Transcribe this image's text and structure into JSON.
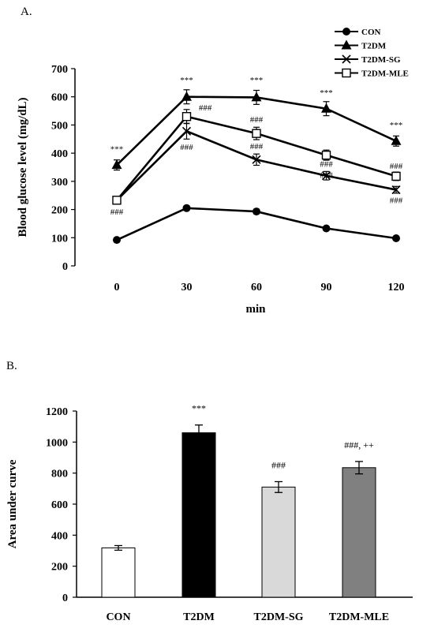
{
  "chart_data": [
    {
      "panel": "A.",
      "type": "line",
      "xlabel": "min",
      "ylabel": "Blood glucose level (mg/dL)",
      "x": [
        0,
        30,
        60,
        90,
        120
      ],
      "xticks": [
        "0",
        "30",
        "60",
        "90",
        "120"
      ],
      "ylim": [
        0,
        700
      ],
      "yticks": [
        "0",
        "100",
        "200",
        "300",
        "400",
        "500",
        "600",
        "700"
      ],
      "grid": false,
      "legend_position": "top-right",
      "series": [
        {
          "name": "CON",
          "marker": "circle",
          "values": [
            92,
            205,
            193,
            133,
            98
          ],
          "errors": [
            5,
            8,
            8,
            6,
            5
          ]
        },
        {
          "name": "T2DM",
          "marker": "triangle",
          "values": [
            358,
            600,
            598,
            558,
            443
          ],
          "errors": [
            18,
            25,
            25,
            25,
            18
          ]
        },
        {
          "name": "T2DM-SG",
          "marker": "x",
          "values": [
            233,
            478,
            377,
            320,
            270
          ],
          "errors": [
            10,
            28,
            20,
            15,
            12
          ]
        },
        {
          "name": "T2DM-MLE",
          "marker": "square",
          "values": [
            233,
            530,
            470,
            393,
            318
          ],
          "errors": [
            10,
            25,
            22,
            18,
            15
          ]
        }
      ],
      "annotations": [
        {
          "x": 0,
          "y": 405,
          "text": "***"
        },
        {
          "x": 30,
          "y": 650,
          "text": "***"
        },
        {
          "x": 60,
          "y": 650,
          "text": "***"
        },
        {
          "x": 90,
          "y": 605,
          "text": "***"
        },
        {
          "x": 120,
          "y": 490,
          "text": "***"
        },
        {
          "x": 0,
          "y": 182,
          "text": "###"
        },
        {
          "x": 38,
          "y": 552,
          "text": "###"
        },
        {
          "x": 30,
          "y": 412,
          "text": "###"
        },
        {
          "x": 60,
          "y": 510,
          "text": "###"
        },
        {
          "x": 60,
          "y": 415,
          "text": "###"
        },
        {
          "x": 90,
          "y": 352,
          "text": "###"
        },
        {
          "x": 90,
          "y": 312,
          "text": "###"
        },
        {
          "x": 120,
          "y": 345,
          "text": "###"
        },
        {
          "x": 120,
          "y": 223,
          "text": "###"
        }
      ]
    },
    {
      "panel": "B.",
      "type": "bar",
      "ylabel": "Area under curve",
      "categories": [
        "CON",
        "T2DM",
        "T2DM-SG",
        "T2DM-MLE"
      ],
      "values": [
        318,
        1060,
        710,
        835
      ],
      "errors": [
        15,
        50,
        35,
        40
      ],
      "colors": [
        "#ffffff",
        "#000000",
        "#d9d9d9",
        "#808080"
      ],
      "ylim": [
        0,
        1200
      ],
      "yticks": [
        "0",
        "200",
        "400",
        "600",
        "800",
        "1000",
        "1200"
      ],
      "grid": false,
      "annotations": [
        "",
        "***",
        "###",
        "###, ++"
      ]
    }
  ]
}
